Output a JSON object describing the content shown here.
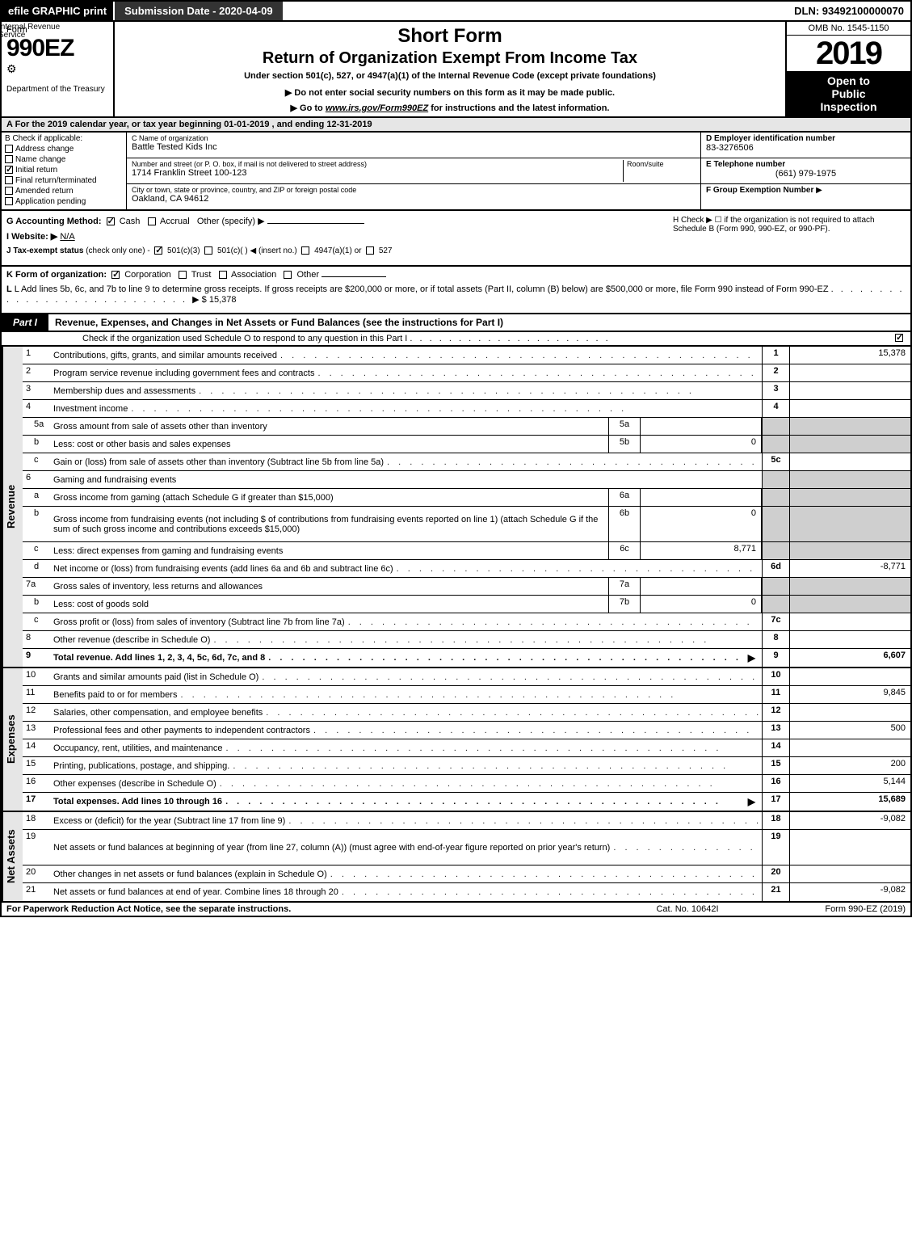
{
  "topbar": {
    "efile": "efile GRAPHIC print",
    "submission": "Submission Date - 2020-04-09",
    "dln": "DLN: 93492100000070"
  },
  "header": {
    "form_label": "Form",
    "form_no": "990EZ",
    "irs_overlay_l1": "Internal Revenue",
    "irs_overlay_l2": "Service",
    "dept": "Department of the Treasury",
    "short_form": "Short Form",
    "return_title": "Return of Organization Exempt From Income Tax",
    "subtitle": "Under section 501(c), 527, or 4947(a)(1) of the Internal Revenue Code (except private foundations)",
    "note": "▶ Do not enter social security numbers on this form as it may be made public.",
    "goto_prefix": "▶ Go to ",
    "goto_link": "www.irs.gov/Form990EZ",
    "goto_suffix": " for instructions and the latest information.",
    "omb": "OMB No. 1545-1150",
    "year": "2019",
    "open_l1": "Open to",
    "open_l2": "Public",
    "open_l3": "Inspection"
  },
  "period": "A For the 2019 calendar year, or tax year beginning 01-01-2019 , and ending 12-31-2019",
  "box_b": {
    "title": "B Check if applicable:",
    "items": [
      {
        "label": "Address change",
        "checked": false
      },
      {
        "label": "Name change",
        "checked": false
      },
      {
        "label": "Initial return",
        "checked": true
      },
      {
        "label": "Final return/terminated",
        "checked": false
      },
      {
        "label": "Amended return",
        "checked": false
      },
      {
        "label": "Application pending",
        "checked": false
      }
    ]
  },
  "box_c": {
    "name_lbl": "C Name of organization",
    "name": "Battle Tested Kids Inc",
    "street_lbl": "Number and street (or P. O. box, if mail is not delivered to street address)",
    "room_lbl": "Room/suite",
    "street": "1714 Franklin Street 100-123",
    "city_lbl": "City or town, state or province, country, and ZIP or foreign postal code",
    "city": "Oakland, CA  94612"
  },
  "box_d": {
    "lbl": "D Employer identification number",
    "val": "83-3276506"
  },
  "box_e": {
    "lbl": "E Telephone number",
    "val": "(661) 979-1975"
  },
  "box_f": {
    "lbl": "F Group Exemption Number",
    "arrow": "▶"
  },
  "box_g": {
    "label": "G Accounting Method:",
    "cash": "Cash",
    "accrual": "Accrual",
    "other": "Other (specify) ▶"
  },
  "box_h": {
    "text": "H Check ▶  ☐  if the organization is not required to attach Schedule B (Form 990, 990-EZ, or 990-PF)."
  },
  "box_i": {
    "label": "I Website: ▶",
    "val": "N/A"
  },
  "box_j": {
    "label": "J Tax-exempt status",
    "small": "(check only one) -",
    "opt1": "501(c)(3)",
    "opt2": "501(c)(  ) ◀ (insert no.)",
    "opt3": "4947(a)(1) or",
    "opt4": "527"
  },
  "box_k": {
    "label": "K Form of organization:",
    "opts": [
      "Corporation",
      "Trust",
      "Association",
      "Other"
    ],
    "checked": 0
  },
  "box_l": {
    "text": "L Add lines 5b, 6c, and 7b to line 9 to determine gross receipts. If gross receipts are $200,000 or more, or if total assets (Part II, column (B) below) are $500,000 or more, file Form 990 instead of Form 990-EZ",
    "arrow": "▶",
    "amount": "$ 15,378"
  },
  "part1": {
    "tab": "Part I",
    "title": "Revenue, Expenses, and Changes in Net Assets or Fund Balances (see the instructions for Part I)",
    "check_text": "Check if the organization used Schedule O to respond to any question in this Part I",
    "check_checked": true
  },
  "dots": ". . . . . . . . . . . . . . . . . . . . . . . . . . . . . . . . . . . . . . . . . . . .",
  "revenue_rows": [
    {
      "num": "1",
      "desc": "Contributions, gifts, grants, and similar amounts received",
      "rnum": "1",
      "rval": "15,378"
    },
    {
      "num": "2",
      "desc": "Program service revenue including government fees and contracts",
      "rnum": "2",
      "rval": ""
    },
    {
      "num": "3",
      "desc": "Membership dues and assessments",
      "rnum": "3",
      "rval": ""
    },
    {
      "num": "4",
      "desc": "Investment income",
      "rnum": "4",
      "rval": ""
    },
    {
      "num": "5a",
      "sub": true,
      "desc": "Gross amount from sale of assets other than inventory",
      "midnum": "5a",
      "midval": "",
      "grey": true
    },
    {
      "num": "b",
      "sub": true,
      "desc": "Less: cost or other basis and sales expenses",
      "midnum": "5b",
      "midval": "0",
      "grey": true
    },
    {
      "num": "c",
      "sub": true,
      "desc": "Gain or (loss) from sale of assets other than inventory (Subtract line 5b from line 5a)",
      "rnum": "5c",
      "rval": ""
    },
    {
      "num": "6",
      "desc": "Gaming and fundraising events",
      "noline": true,
      "grey": true
    },
    {
      "num": "a",
      "sub": true,
      "desc": "Gross income from gaming (attach Schedule G if greater than $15,000)",
      "midnum": "6a",
      "midval": "",
      "grey": true
    },
    {
      "num": "b",
      "sub": true,
      "desc": "Gross income from fundraising events (not including $                      of contributions from fundraising events reported on line 1) (attach Schedule G if the sum of such gross income and contributions exceeds $15,000)",
      "midnum": "6b",
      "midval": "0",
      "grey": true,
      "tall": true
    },
    {
      "num": "c",
      "sub": true,
      "desc": "Less: direct expenses from gaming and fundraising events",
      "midnum": "6c",
      "midval": "8,771",
      "grey": true
    },
    {
      "num": "d",
      "sub": true,
      "desc": "Net income or (loss) from fundraising events (add lines 6a and 6b and subtract line 6c)",
      "rnum": "6d",
      "rval": "-8,771"
    },
    {
      "num": "7a",
      "desc": "Gross sales of inventory, less returns and allowances",
      "midnum": "7a",
      "midval": "",
      "grey": true
    },
    {
      "num": "b",
      "sub": true,
      "desc": "Less: cost of goods sold",
      "midnum": "7b",
      "midval": "0",
      "grey": true
    },
    {
      "num": "c",
      "sub": true,
      "desc": "Gross profit or (loss) from sales of inventory (Subtract line 7b from line 7a)",
      "rnum": "7c",
      "rval": ""
    },
    {
      "num": "8",
      "desc": "Other revenue (describe in Schedule O)",
      "rnum": "8",
      "rval": ""
    },
    {
      "num": "9",
      "bold": true,
      "desc": "Total revenue. Add lines 1, 2, 3, 4, 5c, 6d, 7c, and 8",
      "arrow": true,
      "rnum": "9",
      "rval": "6,607"
    }
  ],
  "expense_rows": [
    {
      "num": "10",
      "desc": "Grants and similar amounts paid (list in Schedule O)",
      "rnum": "10",
      "rval": ""
    },
    {
      "num": "11",
      "desc": "Benefits paid to or for members",
      "rnum": "11",
      "rval": "9,845"
    },
    {
      "num": "12",
      "desc": "Salaries, other compensation, and employee benefits",
      "rnum": "12",
      "rval": ""
    },
    {
      "num": "13",
      "desc": "Professional fees and other payments to independent contractors",
      "rnum": "13",
      "rval": "500"
    },
    {
      "num": "14",
      "desc": "Occupancy, rent, utilities, and maintenance",
      "rnum": "14",
      "rval": ""
    },
    {
      "num": "15",
      "desc": "Printing, publications, postage, and shipping.",
      "rnum": "15",
      "rval": "200"
    },
    {
      "num": "16",
      "desc": "Other expenses (describe in Schedule O)",
      "rnum": "16",
      "rval": "5,144"
    },
    {
      "num": "17",
      "bold": true,
      "desc": "Total expenses. Add lines 10 through 16",
      "arrow": true,
      "rnum": "17",
      "rval": "15,689"
    }
  ],
  "netassets_rows": [
    {
      "num": "18",
      "desc": "Excess or (deficit) for the year (Subtract line 17 from line 9)",
      "rnum": "18",
      "rval": "-9,082"
    },
    {
      "num": "19",
      "desc": "Net assets or fund balances at beginning of year (from line 27, column (A)) (must agree with end-of-year figure reported on prior year's return)",
      "rnum": "19",
      "rval": "",
      "tall": true
    },
    {
      "num": "20",
      "desc": "Other changes in net assets or fund balances (explain in Schedule O)",
      "rnum": "20",
      "rval": ""
    },
    {
      "num": "21",
      "desc": "Net assets or fund balances at end of year. Combine lines 18 through 20",
      "rnum": "21",
      "rval": "-9,082"
    }
  ],
  "side_labels": {
    "revenue": "Revenue",
    "expenses": "Expenses",
    "netassets": "Net Assets"
  },
  "footer": {
    "left": "For Paperwork Reduction Act Notice, see the separate instructions.",
    "mid": "Cat. No. 10642I",
    "right": "Form 990-EZ (2019)"
  },
  "colors": {
    "black": "#000000",
    "white": "#ffffff",
    "grey_bg": "#e6e6e6",
    "cell_grey": "#cfcfcf",
    "dark_grey": "#333333"
  }
}
